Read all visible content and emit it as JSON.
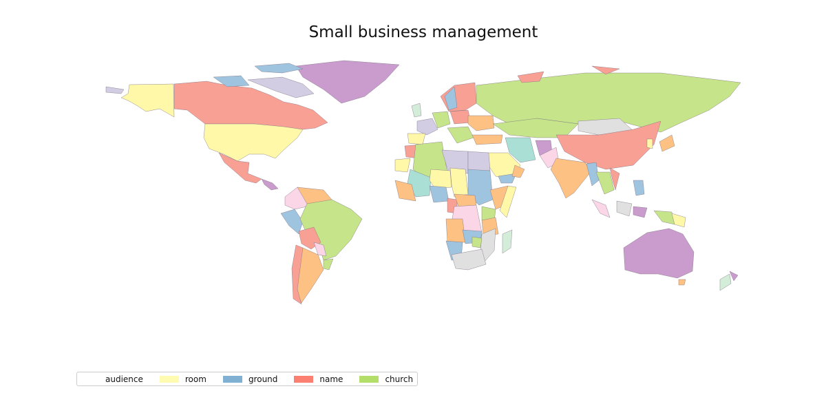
{
  "title": "Small business management",
  "colors": {
    "audience": "#ffffff",
    "room": "#fff8a8",
    "ground": "#9fc4df",
    "name": "#f9a094",
    "church": "#c6e48a",
    "purple": "#c99ccd",
    "lavender": "#d3cde4",
    "orange": "#fdc184",
    "pink": "#fad6e6",
    "grey": "#e0e0e0",
    "teal": "#aadfd6",
    "mint": "#d4edd8"
  },
  "legend": {
    "items": [
      {
        "label": "audience",
        "color": "#ffffff"
      },
      {
        "label": "room",
        "color": "#fffbb0"
      },
      {
        "label": "ground",
        "color": "#80b1d3"
      },
      {
        "label": "name",
        "color": "#fb8072"
      },
      {
        "label": "church",
        "color": "#b3de69"
      }
    ]
  }
}
